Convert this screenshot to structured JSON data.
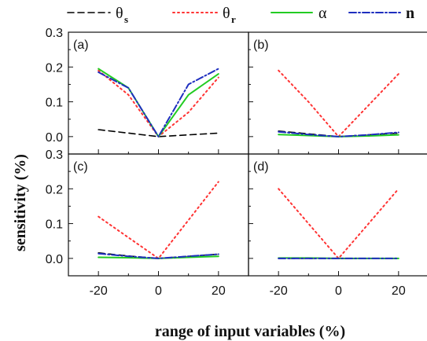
{
  "chart_data": {
    "type": "line",
    "xlabel": "range of input variables (%)",
    "ylabel": "sensitivity (%)",
    "x": [
      -20,
      -10,
      0,
      10,
      20
    ],
    "xticks": [
      -20,
      0,
      20
    ],
    "xlim": [
      -30,
      30
    ],
    "ylim": [
      -0.05,
      0.3
    ],
    "yticks": [
      0.0,
      0.1,
      0.2,
      0.3
    ],
    "ytick_labels": [
      "0.0",
      "0.1",
      "0.2",
      "0.3"
    ],
    "legend": [
      {
        "key": "theta_s",
        "symbol": "θ",
        "sub": "s",
        "color": "#000000",
        "dash": "8,5",
        "width": 1.6
      },
      {
        "key": "theta_r",
        "symbol": "θ",
        "sub": "r",
        "color": "#ff3333",
        "dash": "2,4",
        "width": 2
      },
      {
        "key": "alpha",
        "symbol": "α",
        "sub": "",
        "color": "#22cc22",
        "dash": "",
        "width": 2
      },
      {
        "key": "n",
        "symbol": "n",
        "sub": "",
        "color": "#1f2fbf",
        "dash": "9,3,2,3",
        "width": 2
      }
    ],
    "panels": [
      {
        "label": "(a)",
        "series": {
          "theta_s": [
            0.02,
            0.01,
            0.0,
            0.005,
            0.01
          ],
          "theta_r": [
            0.19,
            0.12,
            0.0,
            0.07,
            0.17
          ],
          "alpha": [
            0.195,
            0.14,
            0.0,
            0.12,
            0.18
          ],
          "n": [
            0.185,
            0.14,
            0.0,
            0.15,
            0.195
          ]
        }
      },
      {
        "label": "(b)",
        "series": {
          "theta_s": [
            0.016,
            0.008,
            0.0,
            0.005,
            0.01
          ],
          "theta_r": [
            0.19,
            0.1,
            0.0,
            0.09,
            0.18
          ],
          "alpha": [
            0.006,
            0.003,
            0.0,
            0.002,
            0.005
          ],
          "n": [
            0.014,
            0.006,
            0.0,
            0.005,
            0.012
          ]
        }
      },
      {
        "label": "(c)",
        "series": {
          "theta_s": [
            0.016,
            0.007,
            0.0,
            0.006,
            0.012
          ],
          "theta_r": [
            0.12,
            0.06,
            0.0,
            0.11,
            0.22
          ],
          "alpha": [
            0.003,
            0.002,
            0.0,
            0.003,
            0.006
          ],
          "n": [
            0.014,
            0.006,
            0.0,
            0.006,
            0.012
          ]
        }
      },
      {
        "label": "(d)",
        "series": {
          "theta_s": [
            0.0,
            0.0,
            0.0,
            0.0,
            0.0
          ],
          "theta_r": [
            0.2,
            0.1,
            0.0,
            0.1,
            0.2
          ],
          "alpha": [
            0.001,
            0.001,
            0.0,
            0.0,
            0.0
          ],
          "n": [
            0.0,
            0.0,
            0.0,
            0.0,
            0.0
          ]
        }
      }
    ]
  }
}
